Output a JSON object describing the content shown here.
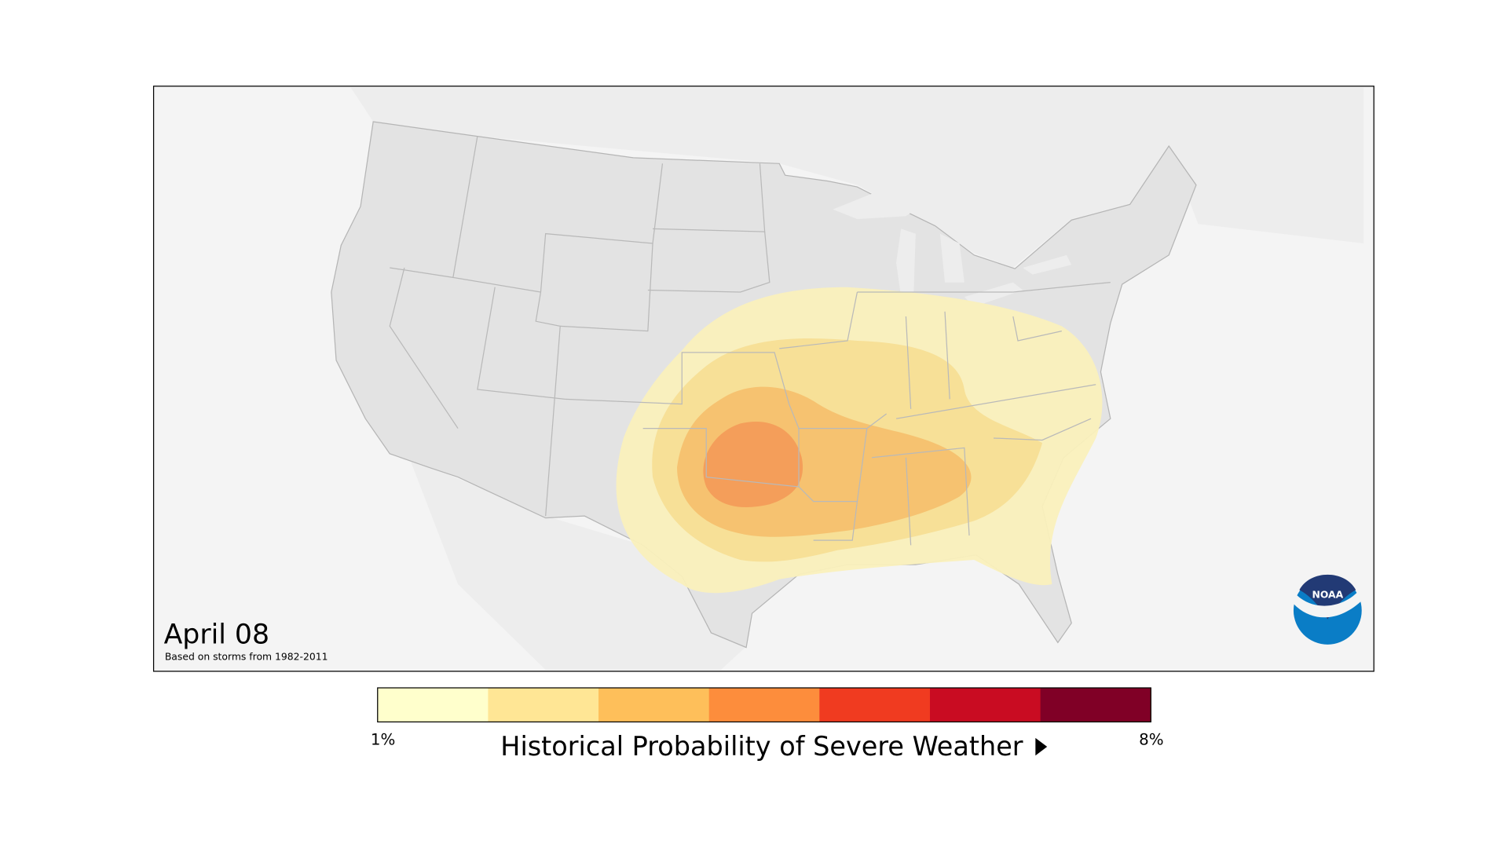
{
  "map": {
    "date_label": "April 08",
    "subtitle": "Based on storms from 1982-2011",
    "background_color": "#f4f4f4",
    "land_color": "#e3e3e3",
    "probability_zone_colors": [
      "#faf0bc",
      "#f7de95",
      "#f6c06e",
      "#f39c58"
    ]
  },
  "legend": {
    "title": "Historical Probability of Severe Weather",
    "min_label": "1%",
    "max_label": "8%",
    "colors": [
      "#ffffcc",
      "#ffe695",
      "#febf5a",
      "#fd8d3c",
      "#f03b20",
      "#c90c22",
      "#800026"
    ],
    "arrow_icon": "triangle-right-icon"
  },
  "logo": {
    "text": "NOAA",
    "top_color": "#223a75",
    "bottom_color": "#0a7dc6"
  }
}
